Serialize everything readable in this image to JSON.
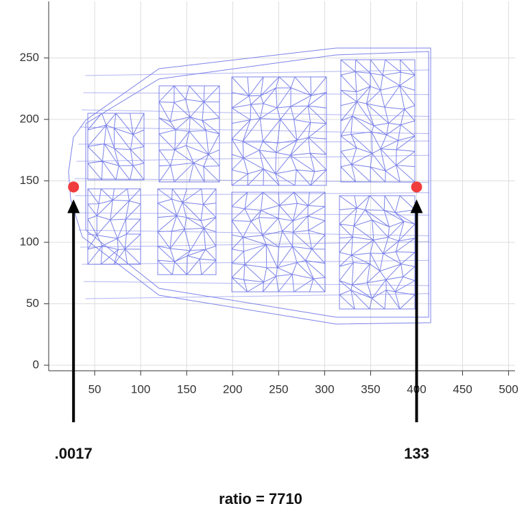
{
  "chart_data": {
    "type": "scatter",
    "x": [
      27,
      400
    ],
    "series": [
      {
        "color": "#f03c3c",
        "values": [
          145,
          145
        ]
      }
    ],
    "xlim": [
      0,
      507
    ],
    "ylim": [
      -4.5,
      296
    ],
    "xticks": [
      50,
      100,
      150,
      200,
      250,
      300,
      350,
      400,
      450,
      500
    ],
    "yticks": [
      0,
      50,
      100,
      150,
      200,
      250
    ],
    "grid": true,
    "mesh_color": "#7b82e8",
    "point_labels": [
      ".0017",
      "133"
    ],
    "caption": "ratio = 7710"
  }
}
